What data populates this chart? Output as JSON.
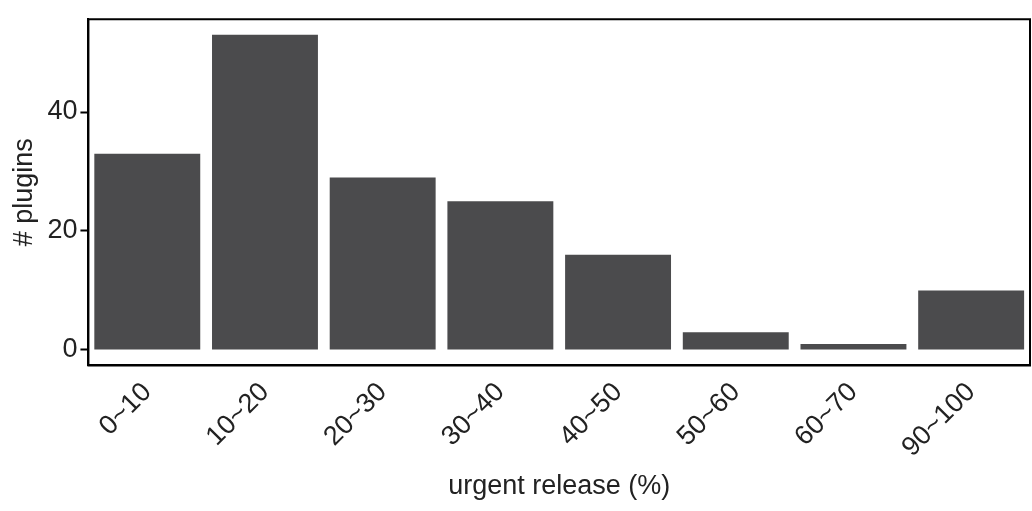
{
  "chart_data": {
    "type": "bar",
    "xlabel": "urgent release (%)",
    "ylabel": "# plugins",
    "categories": [
      "0~10",
      "10~20",
      "20~30",
      "30~40",
      "40~50",
      "50~60",
      "60~70",
      "90~100"
    ],
    "values": [
      33,
      53,
      29,
      25,
      16,
      3,
      1,
      10
    ],
    "color": "#4b4b4d",
    "ylim": [
      -2.6,
      55.6
    ],
    "yticks": [
      0,
      20,
      40
    ],
    "grid": false,
    "legend": false
  }
}
